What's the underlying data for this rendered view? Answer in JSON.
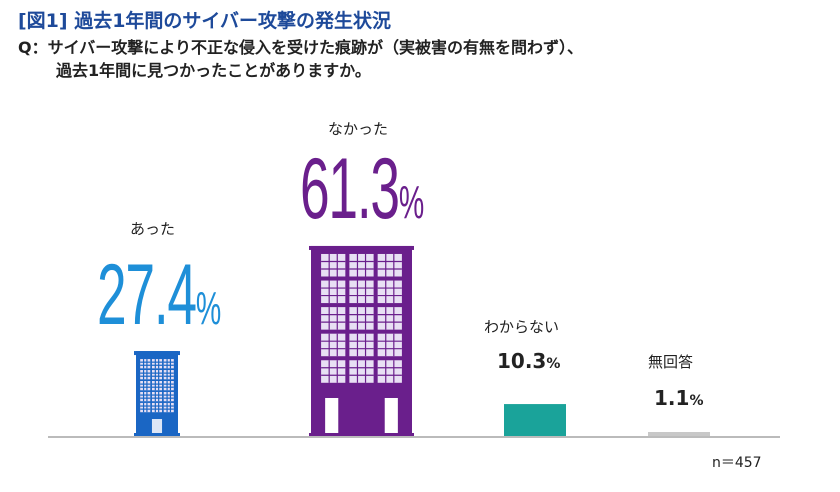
{
  "title": "[図1] 過去1年間のサイバー攻撃の発生状況",
  "question": {
    "line1": "Q：サイバー攻撃により不正な侵入を受けた痕跡が（実被害の有無を問わず）、",
    "line2": "過去1年間に見つかったことがありますか。"
  },
  "n_label": "n＝457",
  "chart_data": {
    "type": "bar",
    "title": "[図1] 過去1年間のサイバー攻撃の発生状況",
    "categories": [
      "あった",
      "なかった",
      "わからない",
      "無回答"
    ],
    "values": [
      27.4,
      61.3,
      10.3,
      1.1
    ],
    "value_labels": [
      "27.4",
      "61.3",
      "10.3",
      "1.1"
    ],
    "unit": "%",
    "colors": [
      "#1a66c4",
      "#6a1f8c",
      "#1aa39a",
      "#c8c8c8"
    ],
    "bar_styles": [
      "building",
      "building",
      "block",
      "block"
    ],
    "grid": false
  }
}
